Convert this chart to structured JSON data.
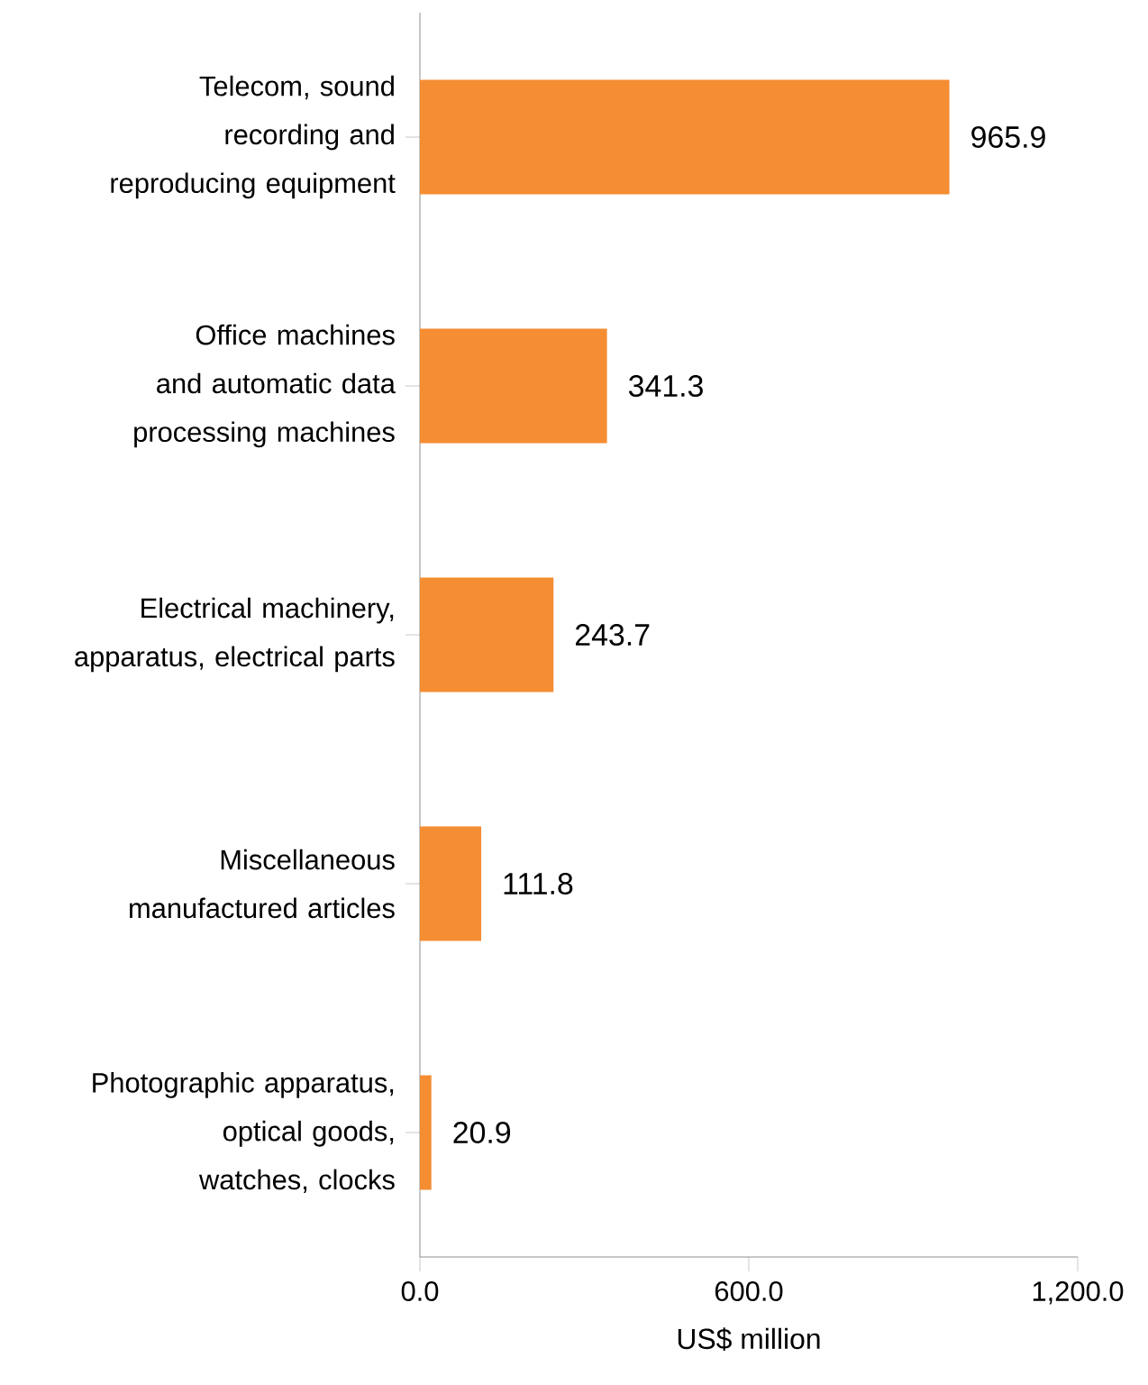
{
  "chart_data": {
    "type": "bar",
    "orientation": "horizontal",
    "categories": [
      "Telecom, sound recording and reproducing equipment",
      "Office machines and automatic data processing machines",
      "Electrical machinery, apparatus, electrical parts",
      "Miscellaneous manufactured articles",
      "Photographic apparatus, optical goods, watches, clocks"
    ],
    "values": [
      965.9,
      341.3,
      243.7,
      111.8,
      20.9
    ],
    "color": "#f58d33",
    "xlim": [
      0,
      1200
    ],
    "xticks": [
      {
        "value": 0,
        "label": "0.0"
      },
      {
        "value": 600,
        "label": "600.0"
      },
      {
        "value": 1200,
        "label": "1,200.0"
      }
    ],
    "xlabel": "US$ million",
    "data_labels": true,
    "grid": false
  }
}
